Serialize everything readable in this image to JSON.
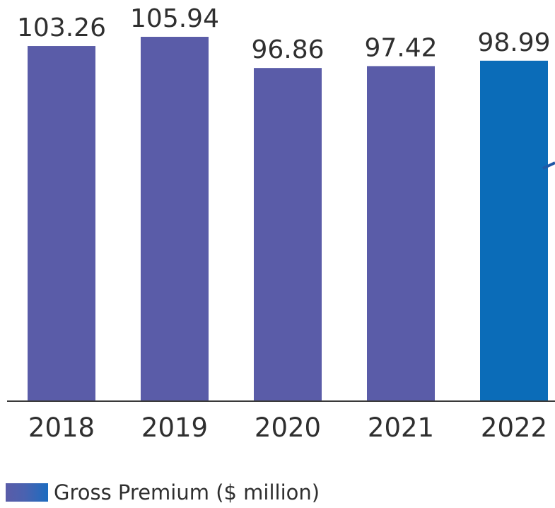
{
  "chart_data": {
    "type": "bar",
    "categories": [
      "2018",
      "2019",
      "2020",
      "2021",
      "2022"
    ],
    "series": [
      {
        "name": "Gross Premium ($ million)",
        "values": [
          103.26,
          105.94,
          96.86,
          97.42,
          98.99
        ]
      }
    ],
    "value_labels": [
      "103.26",
      "105.94",
      "96.86",
      "97.42",
      "98.99"
    ],
    "colors": {
      "default": "#5a5ca8",
      "highlight": "#0b6cb8",
      "highlight_category": "2022",
      "axis": "#3a3a3a",
      "accent_stroke": "#1f58a6"
    },
    "ylim": [
      0,
      108
    ],
    "grid": false,
    "legend_position": "bottom-left"
  },
  "legend": {
    "label": "Gross Premium ($ million)"
  }
}
